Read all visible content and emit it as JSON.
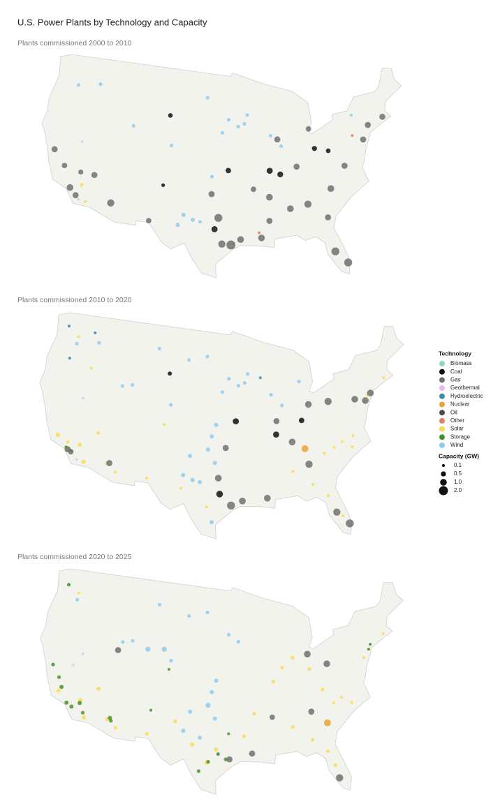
{
  "chart_data": {
    "type": "scatter",
    "title": "U.S. Power Plants by Technology and Capacity",
    "legend_title": "Technology",
    "technologies": [
      {
        "name": "Biomass",
        "color": "#9bd3b8"
      },
      {
        "name": "Coal",
        "color": "#111111"
      },
      {
        "name": "Gas",
        "color": "#707070"
      },
      {
        "name": "Geothermal",
        "color": "#f0b4ee"
      },
      {
        "name": "Hydroelectric",
        "color": "#3a8fa8"
      },
      {
        "name": "Nuclear",
        "color": "#e8a33b"
      },
      {
        "name": "Oil",
        "color": "#4a4a4a"
      },
      {
        "name": "Other",
        "color": "#e0826e"
      },
      {
        "name": "Solar",
        "color": "#f7dc55"
      },
      {
        "name": "Storage",
        "color": "#4a8f2e"
      },
      {
        "name": "Wind",
        "color": "#8ecbef"
      }
    ],
    "size_legend_title": "Capacity (GW)",
    "size_legend": [
      0.1,
      0.5,
      {
        "value": 1,
        "label": "1.0"
      },
      {
        "value": 2,
        "label": "2.0"
      }
    ],
    "panels": [
      {
        "subtitle": "Plants commissioned 2000 to 2010",
        "series": [
          {
            "name": "Wind",
            "lon": [
              -100.5,
              -101.8,
              -102.5,
              -99.5,
              -94,
              -95.5,
              -93,
              -120.5,
              -117,
              -110.5,
              -99,
              -98,
              -87.5,
              -89,
              -76,
              -104.3,
              -92.5,
              -96.5
            ],
            "lat": [
              32.5,
              33,
              31.8,
              32.3,
              43.2,
              44,
              43.5,
              45.8,
              46.5,
              42.5,
              46.5,
              37.5,
              40.7,
              42,
              43,
              40.8,
              44.5,
              42.5
            ],
            "capacity": [
              0.3,
              0.3,
              0.3,
              0.2,
              0.2,
              0.2,
              0.2,
              0.2,
              0.2,
              0.2,
              0.2,
              0.2,
              0.2,
              0.2,
              0.1,
              0.2,
              0.2,
              0.2
            ]
          },
          {
            "name": "Gas",
            "lon": [
              -118,
              -117,
              -112,
              -106.5,
              -97,
              -96.5,
              -95.3,
              -94,
              -91.2,
              -90,
              -87,
              -84.5,
              -81.7,
              -80.3,
              -81,
              -85.5,
              -88,
              -83,
              -75,
              -73.8,
              -71.3,
              -121.5,
              -119.5,
              -117,
              -115,
              -98,
              -92,
              -78.5,
              -82,
              -89.8
            ],
            "lat": [
              34.2,
              33.5,
              33.4,
              32,
              32.8,
              29.8,
              29.7,
              30.3,
              30.4,
              32.3,
              33.5,
              33.8,
              28,
              26.5,
              35.2,
              38.2,
              41.5,
              42.3,
              40,
              41.5,
              42,
              38,
              36.5,
              36.2,
              36.2,
              35.5,
              36,
              37.5,
              32,
              35
            ],
            "capacity": [
              1,
              0.8,
              1.2,
              0.6,
              1.5,
              1.2,
              2,
              1,
              1,
              0.8,
              1,
              1.2,
              1.5,
              1.5,
              1,
              0.8,
              0.8,
              0.6,
              0.8,
              0.8,
              0.8,
              0.8,
              0.6,
              0.5,
              0.8,
              0.8,
              0.6,
              0.8,
              0.8,
              1
            ]
          },
          {
            "name": "Coal",
            "lon": [
              -104.9,
              -95.6,
              -89.5,
              -88,
              -82.5,
              -80.5,
              -97.5,
              -105
            ],
            "lat": [
              44.2,
              38.2,
              38,
              37.5,
              40,
              39.5,
              31.5,
              36.2
            ],
            "capacity": [
              0.4,
              0.6,
              0.8,
              0.7,
              0.5,
              0.4,
              0.8,
              0.2
            ]
          },
          {
            "name": "Solar",
            "lon": [
              -116.5,
              -115.5
            ],
            "lat": [
              34.8,
              33
            ],
            "capacity": [
              0.2,
              0.1
            ]
          },
          {
            "name": "Geothermal",
            "lon": [
              -117.8,
              -116.5
            ],
            "lat": [
              39.6,
              33.1
            ],
            "capacity": [
              0.05,
              0.05
            ]
          },
          {
            "name": "Other",
            "lon": [
              -76.5,
              -91.5
            ],
            "lat": [
              40.7,
              31
            ],
            "capacity": [
              0.1,
              0.1
            ]
          }
        ]
      },
      {
        "subtitle": "Plants commissioned 2010 to 2020",
        "series": [
          {
            "name": "Wind",
            "lon": [
              -100.5,
              -101.8,
              -99.5,
              -98.5,
              -97.5,
              -94,
              -95.5,
              -93,
              -120.5,
              -117,
              -110.5,
              -99,
              -98,
              -87.5,
              -89,
              -104.3,
              -92.5,
              -96.5,
              -101,
              -97.8,
              -102,
              -107,
              -112,
              -97.4,
              -84.5
            ],
            "lat": [
              32.5,
              33,
              32.3,
              36,
              34.5,
              43.2,
              44,
              43.5,
              45.8,
              46.5,
              42.5,
              46.5,
              37.5,
              40.7,
              42,
              40.8,
              44.5,
              42.5,
              35.2,
              27.8,
              46,
              47,
              42.2,
              38.8,
              43.2
            ],
            "capacity": [
              0.3,
              0.3,
              0.3,
              0.3,
              0.3,
              0.2,
              0.2,
              0.2,
              0.2,
              0.2,
              0.2,
              0.2,
              0.3,
              0.2,
              0.2,
              0.2,
              0.2,
              0.2,
              0.3,
              0.3,
              0.2,
              0.2,
              0.2,
              0.3,
              0.2
            ]
          },
          {
            "name": "Solar",
            "lon": [
              -116.5,
              -115.5,
              -119.8,
              -118.2,
              -112.3,
              -111,
              -106.7,
              -105,
              -98.5,
              -80.7,
              -79.5,
              -78.2,
              -77.8,
              -81.8,
              -82.5,
              -84.3,
              -86.8,
              -75.2,
              -74.5,
              -71.5,
              -117.3,
              -120.5,
              -114.3,
              -102,
              -82.2,
              -81
            ],
            "lat": [
              34.8,
              33,
              35.3,
              34.8,
              33.3,
              32.5,
              32.3,
              38.5,
              29.5,
              35.3,
              35.8,
              35,
              36.2,
              28.3,
              30,
              31.5,
              33.2,
              39.7,
              40.3,
              41.8,
              43.5,
              46.6,
              36.5,
              31.5,
              34.8,
              27.5
            ],
            "capacity": [
              0.3,
              0.3,
              0.3,
              0.2,
              0.2,
              0.1,
              0.1,
              0.1,
              0.1,
              0.1,
              0.1,
              0.1,
              0.1,
              0.1,
              0.1,
              0.1,
              0.1,
              0.1,
              0.1,
              0.1,
              0.1,
              0.1,
              0.2,
              0.1,
              0.1,
              0.1
            ]
          },
          {
            "name": "Gas",
            "lon": [
              -97,
              -95.3,
              -93.8,
              -90.5,
              -84.5,
              -81.7,
              -80.3,
              -80.5,
              -76.5,
              -75,
              -74,
              -83.5,
              -88.5,
              -118,
              -117.5,
              -112,
              -96,
              -86.5
            ],
            "lat": [
              32.8,
              29.7,
              30.2,
              30.4,
              33.8,
              28,
              26.5,
              40.5,
              40.2,
              39.8,
              40.5,
              40.5,
              39,
              34,
              33.8,
              33.4,
              36.2,
              36.5
            ],
            "capacity": [
              1,
              1.5,
              1,
              1,
              1.2,
              1.2,
              1.5,
              1.2,
              1,
              1,
              1,
              1,
              0.8,
              0.8,
              0.6,
              0.8,
              0.8,
              1
            ]
          },
          {
            "name": "Coal",
            "lon": [
              -104.9,
              -94.5,
              -96.8,
              -88.7,
              -84.8
            ],
            "lat": [
              44.3,
              39.2,
              31,
              37.5,
              38.8
            ],
            "capacity": [
              0.3,
              0.8,
              1,
              0.8,
              0.6
            ]
          },
          {
            "name": "Nuclear",
            "lon": [
              -84.8
            ],
            "lat": [
              35.6
            ],
            "capacity": [
              1.1
            ]
          },
          {
            "name": "Hydroelectric",
            "lon": [
              -122.5,
              -121,
              -118,
              -90.5
            ],
            "lat": [
              47.5,
              44,
              47.5,
              44
            ],
            "capacity": [
              0.1,
              0.1,
              0.1,
              0.1
            ]
          },
          {
            "name": "Storage",
            "lon": [
              -118.3,
              -117.5
            ],
            "lat": [
              34.2,
              33.9
            ],
            "capacity": [
              0.1,
              0.1
            ]
          },
          {
            "name": "Geothermal",
            "lon": [
              -117.5,
              -116.5
            ],
            "lat": [
              40,
              33.1
            ],
            "capacity": [
              0.05,
              0.05
            ]
          }
        ]
      },
      {
        "subtitle": "Plants commissioned 2020 to 2025",
        "series": [
          {
            "name": "Solar",
            "lon": [
              -116.5,
              -115.5,
              -119.8,
              -112.3,
              -111,
              -106.7,
              -98.5,
              -80.7,
              -79.5,
              -78.2,
              -81.8,
              -82.5,
              -84.3,
              -86.8,
              -75.2,
              -71.5,
              -87.5,
              -85.8,
              -89,
              -83.5,
              -93.5,
              -97.3,
              -100.5,
              -103,
              -114.3,
              -120.5,
              -92,
              -82
            ],
            "lat": [
              34.8,
              33,
              35.3,
              33.3,
              32.5,
              32.3,
              29.5,
              35.3,
              35.8,
              35,
              28.3,
              30,
              31.5,
              33.2,
              39.7,
              41.8,
              40,
              41,
              38.5,
              39.5,
              32.5,
              31,
              31.5,
              34,
              36.5,
              46.6,
              35,
              37
            ],
            "capacity": [
              0.4,
              0.3,
              0.3,
              0.3,
              0.2,
              0.2,
              0.3,
              0.1,
              0.1,
              0.1,
              0.2,
              0.2,
              0.2,
              0.2,
              0.1,
              0.1,
              0.2,
              0.2,
              0.2,
              0.2,
              0.2,
              0.3,
              0.3,
              0.2,
              0.3,
              0.1,
              0.2,
              0.2
            ]
          },
          {
            "name": "Storage",
            "lon": [
              -118.3,
              -117.5,
              -116.5,
              -115.8,
              -119.5,
              -120.2,
              -121.5,
              -112,
              -111.8,
              -98.3,
              -97,
              -96,
              -95.6,
              -99.5,
              -74.2,
              -73.8,
              -106.5,
              -104.5,
              -122.5
            ],
            "lat": [
              34.2,
              33.9,
              34.5,
              33.5,
              35.8,
              36.8,
              38,
              33.5,
              33.2,
              29.6,
              30.5,
              29.9,
              32.8,
              28.5,
              40.5,
              41,
              35,
              39.8,
              47.2
            ],
            "capacity": [
              0.3,
              0.3,
              0.3,
              0.2,
              0.3,
              0.2,
              0.2,
              0.3,
              0.2,
              0.2,
              0.2,
              0.2,
              0.1,
              0.2,
              0.1,
              0.1,
              0.1,
              0.1,
              0.2
            ]
          },
          {
            "name": "Wind",
            "lon": [
              -101.8,
              -99.5,
              -98.5,
              -97.5,
              -94,
              -95.5,
              -120.5,
              -110.5,
              -99,
              -98,
              -104.3,
              -101,
              -102,
              -107,
              -112,
              -97.4,
              -105.5,
              -108
            ],
            "lat": [
              33,
              32.3,
              36,
              34.5,
              43.2,
              44,
              45.8,
              42.5,
              46.5,
              37.5,
              40.8,
              35.2,
              46,
              47,
              42.2,
              38.8,
              42,
              41.8
            ],
            "capacity": [
              0.3,
              0.3,
              0.5,
              0.3,
              0.2,
              0.2,
              0.2,
              0.2,
              0.2,
              0.3,
              0.2,
              0.3,
              0.2,
              0.2,
              0.2,
              0.3,
              0.5,
              0.5
            ]
          },
          {
            "name": "Gas",
            "lon": [
              -112.5,
              -83.5,
              -80.8,
              -84,
              -81.5,
              -95.5,
              -92.5,
              -89.5
            ],
            "lat": [
              41.2,
              41.2,
              39.8,
              34.7,
              26.8,
              29.9,
              30.5,
              34.5
            ],
            "capacity": [
              0.8,
              1,
              1,
              0.8,
              1.2,
              0.8,
              0.8,
              0.6
            ]
          },
          {
            "name": "Nuclear",
            "lon": [
              -82
            ],
            "lat": [
              33.2
            ],
            "capacity": [
              1.1
            ]
          },
          {
            "name": "Geothermal",
            "lon": [
              -117.6,
              -118.6
            ],
            "lat": [
              40,
              38.5
            ],
            "capacity": [
              0.05,
              0.05
            ]
          }
        ]
      }
    ]
  }
}
